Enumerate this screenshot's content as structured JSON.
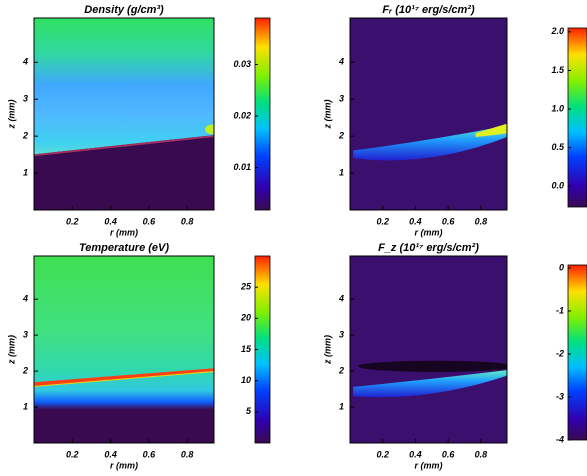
{
  "chart_data": [
    {
      "type": "heatmap",
      "title": "Density (g/cm³)",
      "x_label": "r (mm)",
      "y_label": "z (mm)",
      "xlim": [
        0,
        0.94
      ],
      "ylim": [
        0,
        5.2
      ],
      "xticks": [
        0.2,
        0.4,
        0.6,
        0.8
      ],
      "yticks": [
        1,
        2,
        3,
        4
      ],
      "clim": [
        0.0018,
        0.039
      ],
      "cticks": [
        0.01,
        0.02,
        0.03
      ]
    },
    {
      "type": "heatmap",
      "title": "Fᵣ (10¹⁷ erg/s/cm²)",
      "x_label": "r (mm)",
      "y_label": "z (mm)",
      "xlim": [
        0,
        0.96
      ],
      "ylim": [
        0,
        5.2
      ],
      "xticks": [
        0.2,
        0.4,
        0.6,
        0.8
      ],
      "yticks": [
        1,
        2,
        3,
        4
      ],
      "clim": [
        -0.27,
        2.05
      ],
      "cticks": [
        {
          "value": 0,
          "label": "0.0"
        },
        {
          "value": 0.5,
          "label": "0.5"
        },
        {
          "value": 1,
          "label": "1.0"
        },
        {
          "value": 1.5,
          "label": "1.5"
        },
        {
          "value": 2,
          "label": "2.0"
        }
      ]
    },
    {
      "type": "heatmap",
      "title": "Temperature (eV)",
      "x_label": "r (mm)",
      "y_label": "z (mm)",
      "xlim": [
        0,
        0.94
      ],
      "ylim": [
        0,
        5.2
      ],
      "xticks": [
        0.2,
        0.4,
        0.6,
        0.8
      ],
      "yticks": [
        1,
        2,
        3,
        4
      ],
      "clim": [
        0,
        30
      ],
      "cticks": [
        5,
        10,
        15,
        20,
        25
      ]
    },
    {
      "type": "heatmap",
      "title": "F_z (10¹⁷ erg/s/cm²)",
      "x_label": "r (mm)",
      "y_label": "z (mm)",
      "xlim": [
        0,
        0.96
      ],
      "ylim": [
        0,
        5.2
      ],
      "xticks": [
        0.2,
        0.4,
        0.6,
        0.8
      ],
      "yticks": [
        1,
        2,
        3,
        4
      ],
      "clim": [
        -4,
        0.07
      ],
      "cticks": [
        -4,
        -3,
        -2,
        -1,
        0
      ]
    }
  ]
}
